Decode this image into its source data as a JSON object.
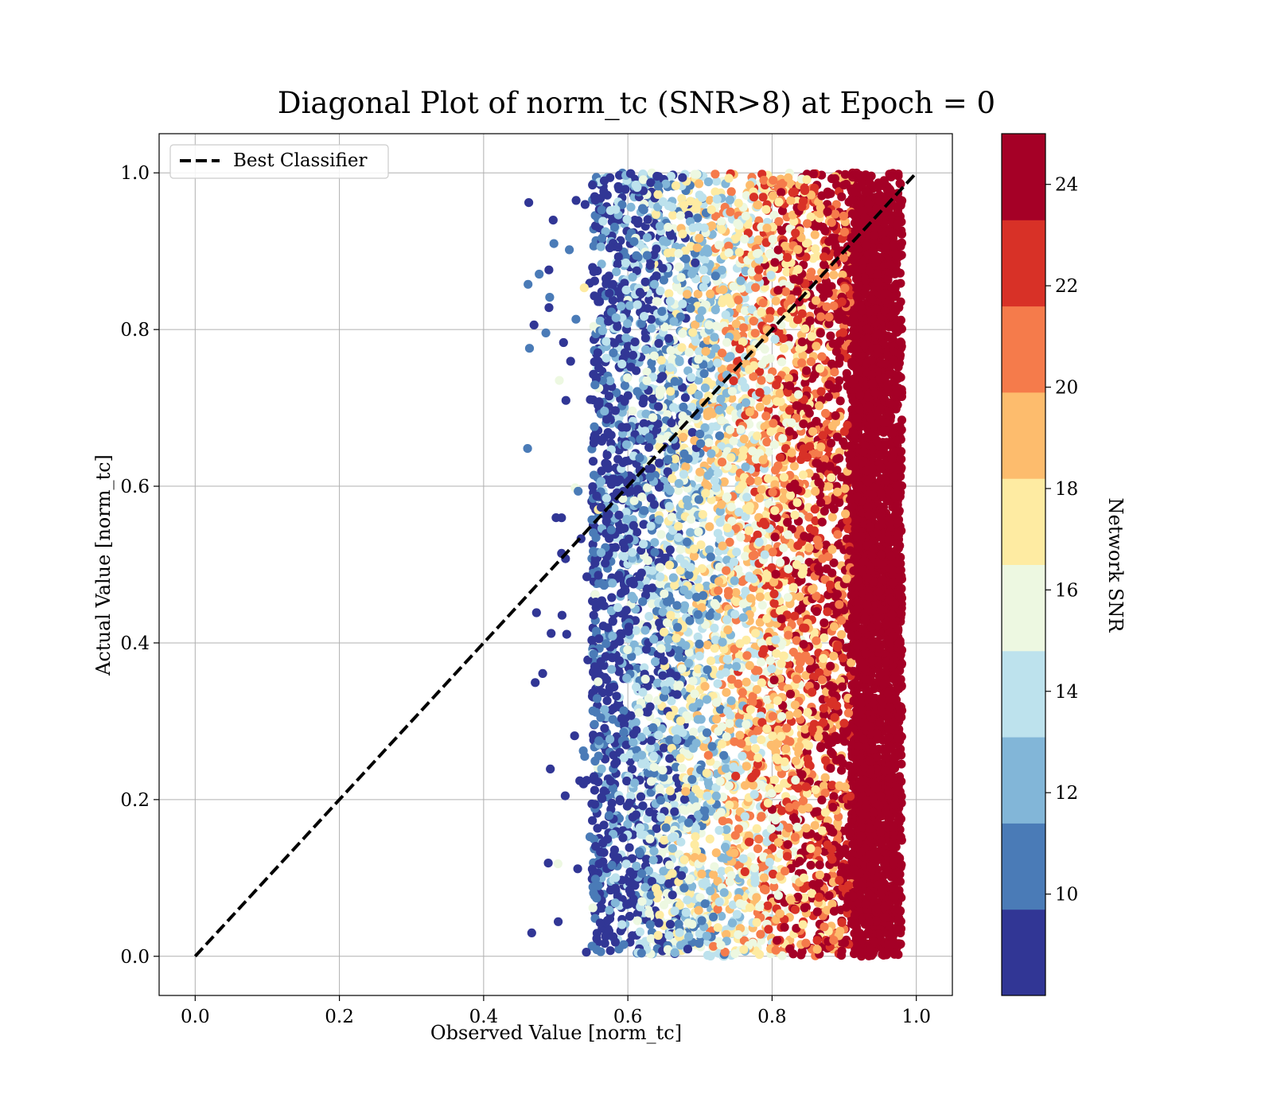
{
  "chart_data": {
    "type": "scatter",
    "title": "Diagonal Plot of norm_tc (SNR>8) at Epoch = 0",
    "xlabel": "Observed Value [norm_tc]",
    "ylabel": "Actual Value [norm_tc]",
    "xlim": [
      -0.05,
      1.05
    ],
    "ylim": [
      -0.05,
      1.05
    ],
    "xticks": [
      "0.0",
      "0.2",
      "0.4",
      "0.6",
      "0.8",
      "1.0"
    ],
    "yticks": [
      "0.0",
      "0.2",
      "0.4",
      "0.6",
      "0.8",
      "1.0"
    ],
    "grid": true,
    "legend": {
      "placement": "top-left",
      "entries": [
        {
          "label": "Best Classifier",
          "style": "dashed",
          "color": "#000000"
        }
      ]
    },
    "reference_line": {
      "name": "Best Classifier",
      "x": [
        0,
        1
      ],
      "y": [
        0,
        1
      ]
    },
    "colorbar": {
      "label": "Network SNR",
      "range": [
        8,
        25
      ],
      "ticks": [
        "10",
        "12",
        "14",
        "16",
        "18",
        "20",
        "22",
        "24"
      ],
      "colors": [
        "#313695",
        "#4a7bb7",
        "#82b6d8",
        "#bde2ed",
        "#edf8e1",
        "#feeba2",
        "#fdbc6d",
        "#f57b4b",
        "#d83127",
        "#a50026"
      ]
    },
    "scatter_summary": {
      "x_range": [
        0.46,
        0.99
      ],
      "y_range": [
        0.0,
        1.0
      ],
      "color_by": "Network SNR",
      "note_trend": "higher observed values correspond to higher SNR"
    }
  }
}
